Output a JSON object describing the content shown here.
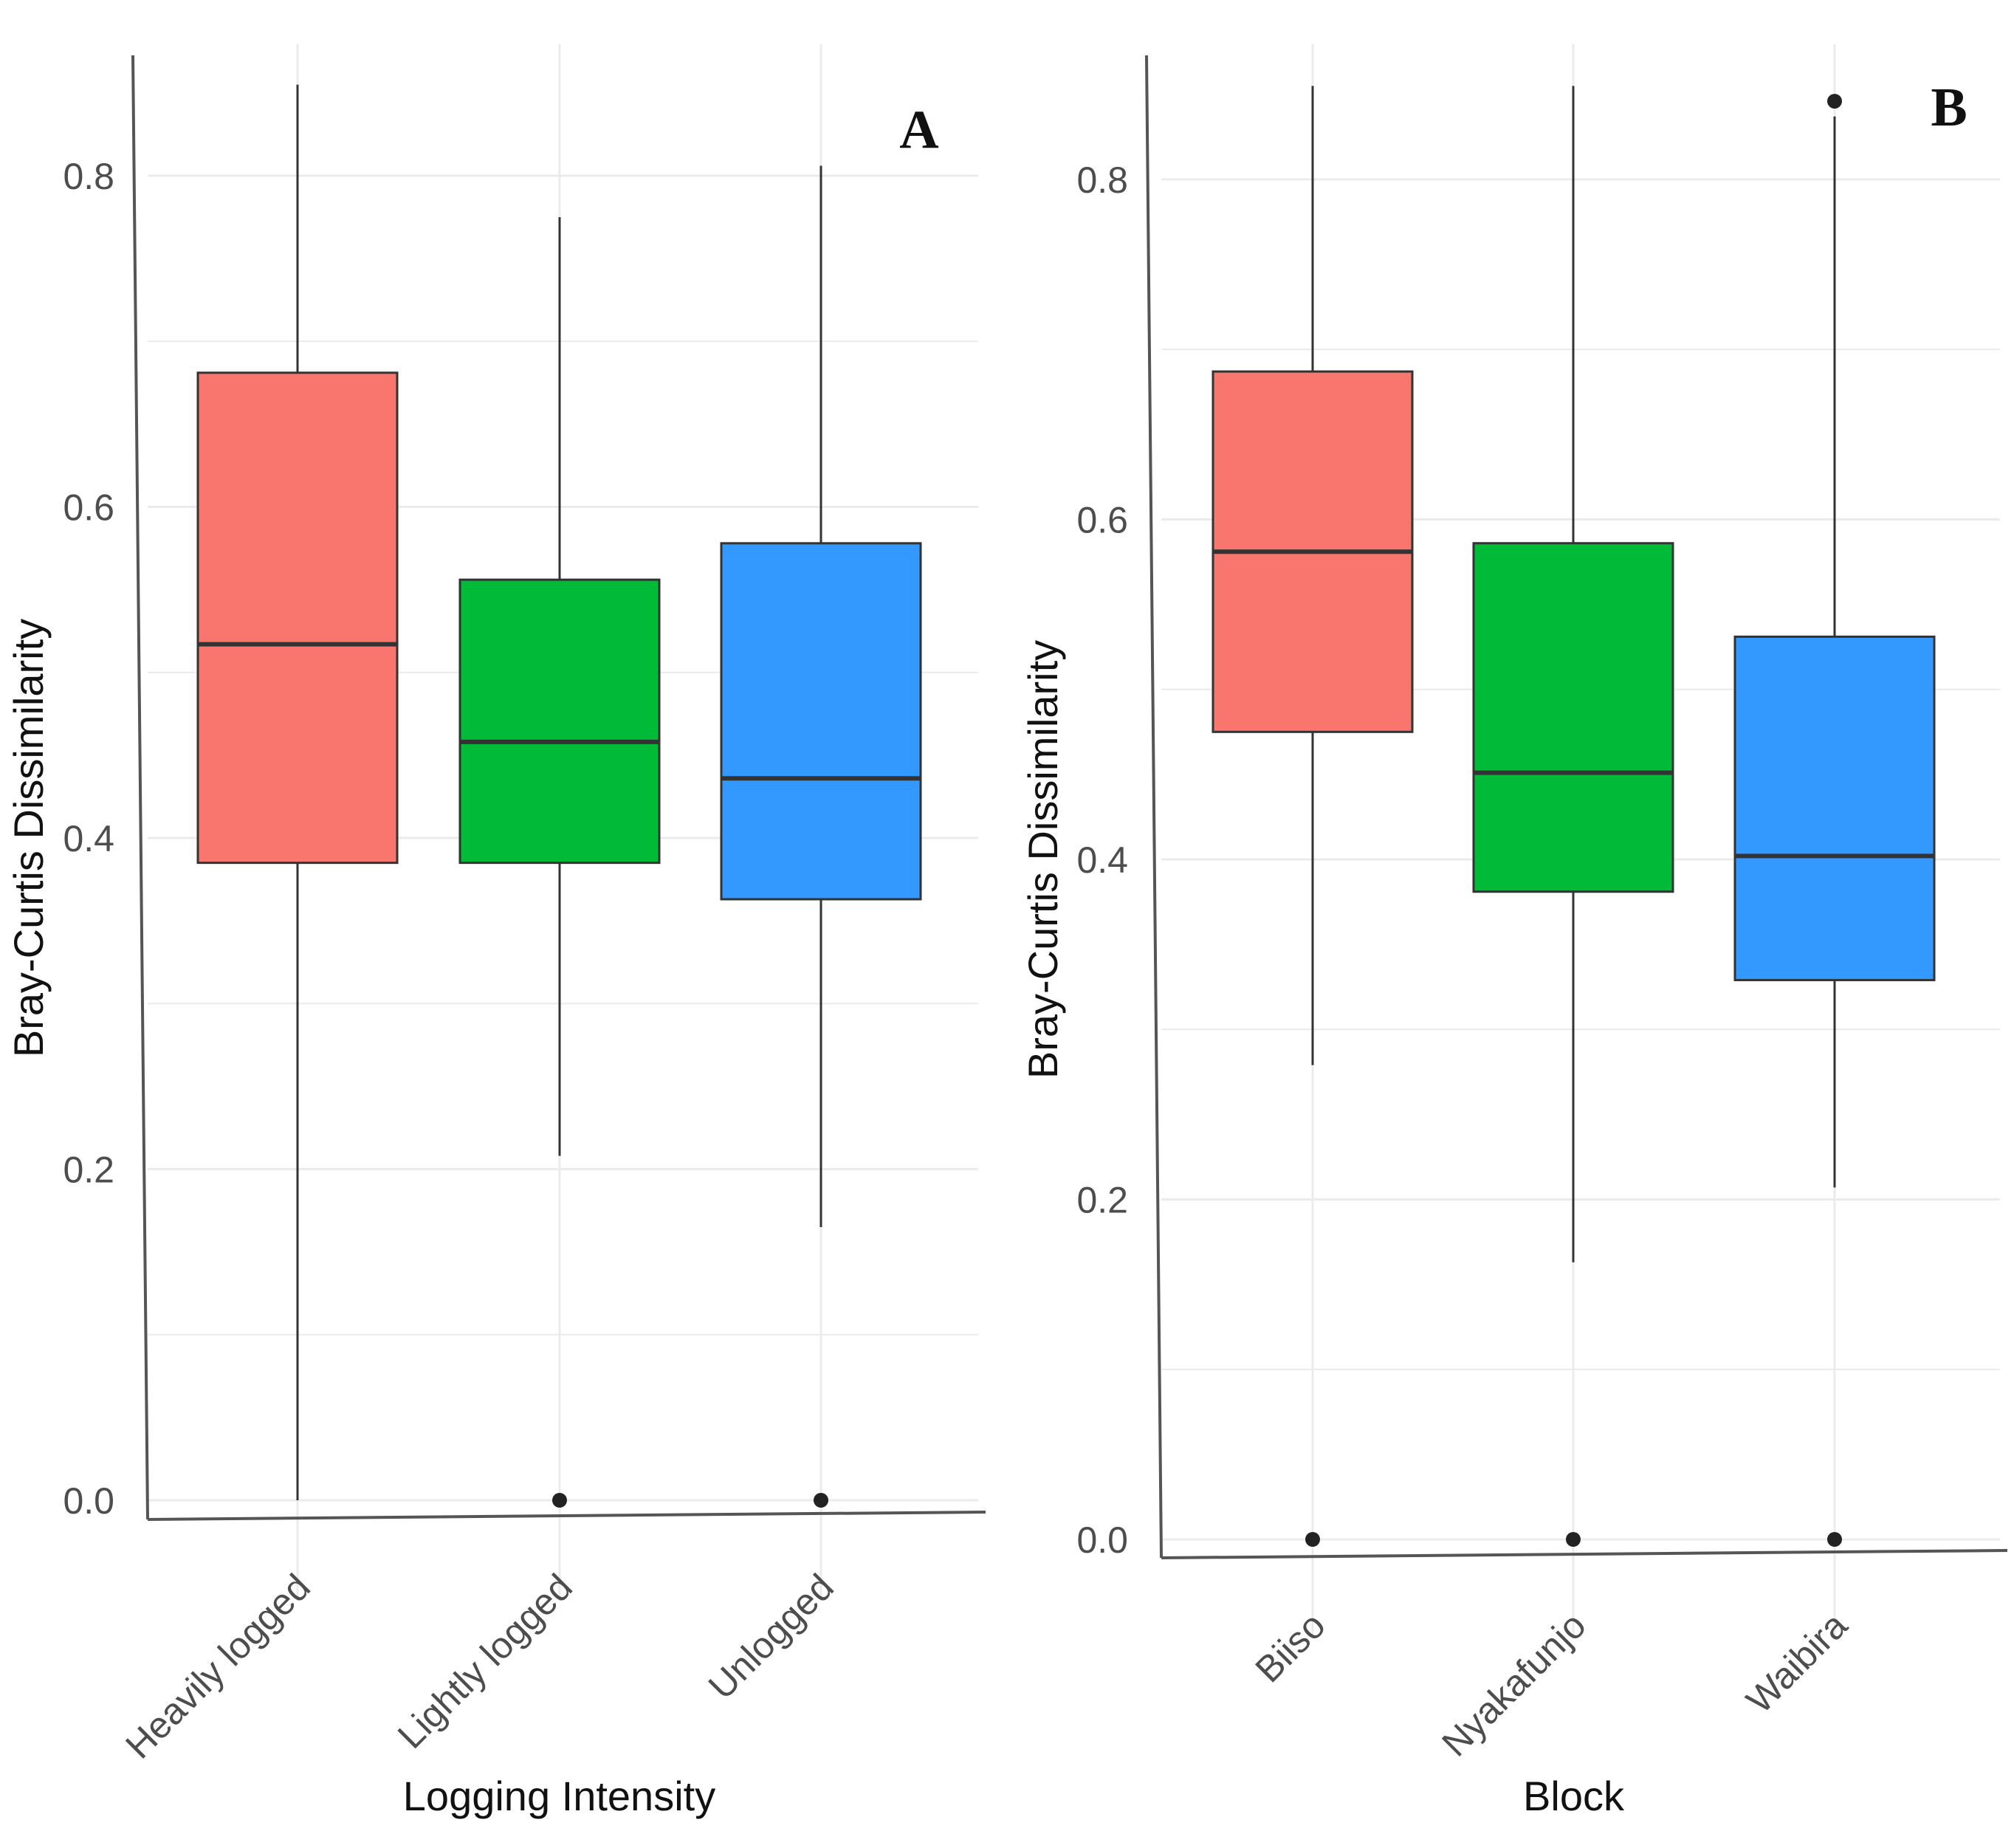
{
  "chart_data": [
    {
      "type": "box",
      "panel": "A",
      "xlabel": "Logging Intensity",
      "ylabel": "Bray-Curtis Dissimilarity",
      "categories": [
        "Heavily logged",
        "Lightly logged",
        "Unlogged"
      ],
      "ylim": [
        -0.01,
        0.86
      ],
      "yticks": [
        0.0,
        0.2,
        0.4,
        0.6,
        0.8
      ],
      "yticklabels": [
        "0.0",
        "0.2",
        "0.4",
        "0.6",
        "0.8"
      ],
      "grid": true,
      "boxes": [
        {
          "category": "Heavily logged",
          "color": "#F8766D",
          "whisker_low": 0.0,
          "q1": 0.385,
          "median": 0.517,
          "q3": 0.681,
          "whisker_high": 0.855,
          "outliers": []
        },
        {
          "category": "Lightly logged",
          "color": "#00BA38",
          "whisker_low": 0.208,
          "q1": 0.385,
          "median": 0.458,
          "q3": 0.556,
          "whisker_high": 0.775,
          "outliers": [
            0.0
          ]
        },
        {
          "category": "Unlogged",
          "color": "#3399FF",
          "whisker_low": 0.165,
          "q1": 0.363,
          "median": 0.436,
          "q3": 0.578,
          "whisker_high": 0.806,
          "outliers": [
            0.0
          ]
        }
      ]
    },
    {
      "type": "box",
      "panel": "B",
      "xlabel": "Block",
      "ylabel": "Bray-Curtis Dissimilarity",
      "categories": [
        "Biiso",
        "Nyakafunjo",
        "Waibira"
      ],
      "ylim": [
        -0.01,
        0.86
      ],
      "yticks": [
        0.0,
        0.2,
        0.4,
        0.6,
        0.8
      ],
      "yticklabels": [
        "0.0",
        "0.2",
        "0.4",
        "0.6",
        "0.8"
      ],
      "grid": true,
      "boxes": [
        {
          "category": "Biiso",
          "color": "#F8766D",
          "whisker_low": 0.279,
          "q1": 0.475,
          "median": 0.581,
          "q3": 0.687,
          "whisker_high": 0.855,
          "outliers": [
            0.0
          ]
        },
        {
          "category": "Nyakafunjo",
          "color": "#00BA38",
          "whisker_low": 0.163,
          "q1": 0.381,
          "median": 0.451,
          "q3": 0.586,
          "whisker_high": 0.855,
          "outliers": [
            0.0
          ]
        },
        {
          "category": "Waibira",
          "color": "#3399FF",
          "whisker_low": 0.207,
          "q1": 0.329,
          "median": 0.402,
          "q3": 0.531,
          "whisker_high": 0.837,
          "outliers": [
            0.0,
            0.846
          ]
        }
      ]
    }
  ]
}
